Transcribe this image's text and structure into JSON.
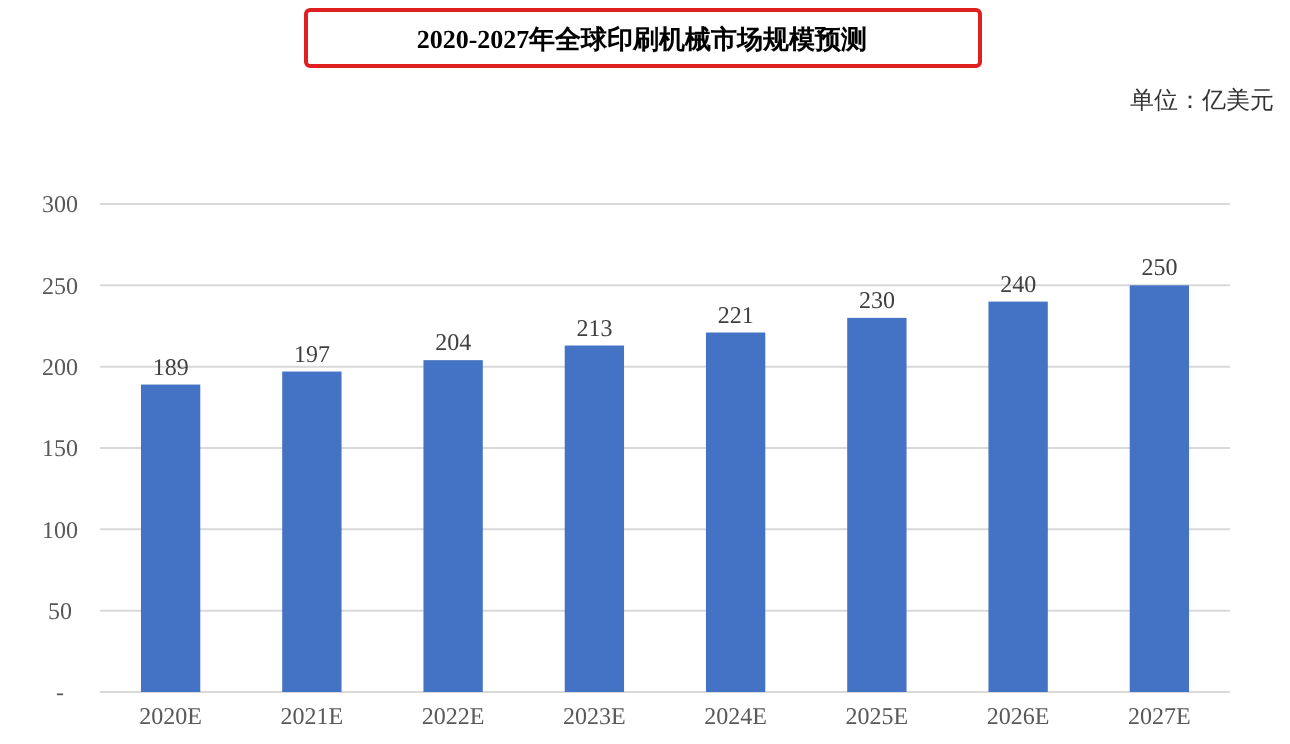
{
  "chart_data": {
    "type": "bar",
    "title": "2020-2027年全球印刷机械市场规模预测",
    "subtitle": "单位：亿美元",
    "categories": [
      "2020E",
      "2021E",
      "2022E",
      "2023E",
      "2024E",
      "2025E",
      "2026E",
      "2027E"
    ],
    "values": [
      189,
      197,
      204,
      213,
      221,
      230,
      240,
      250
    ],
    "color": "#4472c4",
    "ylim": [
      0,
      300
    ],
    "yticks": [
      {
        "value": 0,
        "label": "-"
      },
      50,
      100,
      150,
      200,
      250,
      300
    ],
    "grid": "y",
    "data_labels": true
  }
}
